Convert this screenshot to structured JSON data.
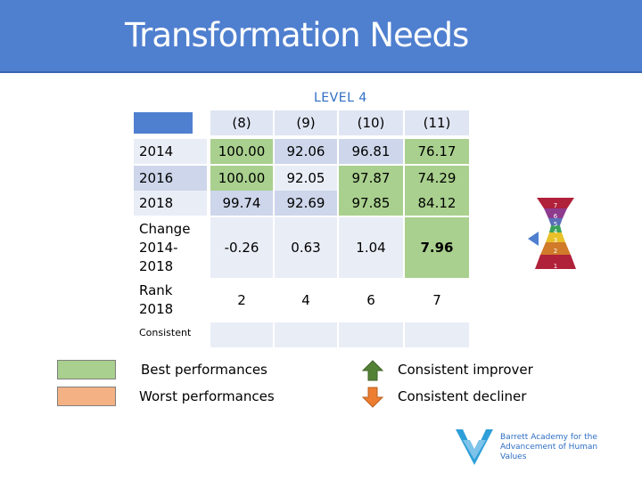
{
  "header": {
    "title": "Transformation Needs"
  },
  "level_label": "LEVEL 4",
  "table": {
    "columns": [
      "(8)",
      "(9)",
      "(10)",
      "(11)"
    ],
    "rows": [
      {
        "label": "2014",
        "values": [
          "100.00",
          "92.06",
          "96.81",
          "76.17"
        ]
      },
      {
        "label": "2016",
        "values": [
          "100.00",
          "92.05",
          "97.87",
          "74.29"
        ]
      },
      {
        "label": "2018",
        "values": [
          "99.74",
          "92.69",
          "97.85",
          "84.12"
        ]
      },
      {
        "label": "Change 2014-2018",
        "values": [
          "-0.26",
          "0.63",
          "1.04",
          "7.96"
        ]
      },
      {
        "label": "Rank 2018",
        "values": [
          "2",
          "4",
          "6",
          "7"
        ]
      },
      {
        "label": "Consistent",
        "values": [
          "",
          "",
          "",
          ""
        ]
      }
    ]
  },
  "legend": {
    "best": {
      "label": "Best performances",
      "color": "#a9d08e"
    },
    "worst": {
      "label": "Worst performances",
      "color": "#f4b183"
    },
    "improver": {
      "label": "Consistent improver",
      "color": "#548235"
    },
    "decliner": {
      "label": "Consistent decliner",
      "color": "#ed7d31"
    }
  },
  "pyramid": {
    "levels": [
      "7",
      "6",
      "5",
      "4",
      "3",
      "2",
      "1"
    ]
  },
  "logo": {
    "line1": "Barrett Academy for the",
    "line2": "Advancement of Human Values"
  }
}
